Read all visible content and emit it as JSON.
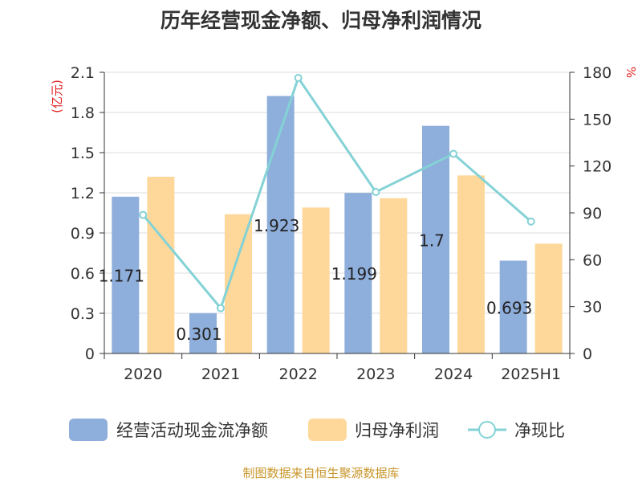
{
  "title": "历年经营现金净额、归母净利润情况",
  "source": "制图数据来自恒生聚源数据库",
  "chart_data": {
    "type": "bar",
    "categories": [
      "2020",
      "2021",
      "2022",
      "2023",
      "2024",
      "2025H1"
    ],
    "series": [
      {
        "name": "经营活动现金流净额",
        "type": "bar",
        "axis": "left",
        "color": "#8eaedb",
        "values": [
          1.171,
          0.301,
          1.923,
          1.199,
          1.7,
          0.693
        ],
        "labels": [
          "1.171",
          "0.301",
          "1.923",
          "1.199",
          "1.7",
          "0.693"
        ]
      },
      {
        "name": "归母净利润",
        "type": "bar",
        "axis": "left",
        "color": "#fdd89a",
        "values": [
          1.32,
          1.04,
          1.09,
          1.16,
          1.33,
          0.82
        ]
      },
      {
        "name": "净现比",
        "type": "line",
        "axis": "right",
        "color": "#84d2d6",
        "values": [
          88.7,
          29.0,
          176.4,
          103.4,
          127.8,
          84.5
        ]
      }
    ],
    "ylabel_left": "(亿元)",
    "ylabel_right": "%",
    "ylim_left": [
      0,
      2.1
    ],
    "ylim_right": [
      0,
      180
    ],
    "yticks_left": [
      "0",
      "0.3",
      "0.6",
      "0.9",
      "1.2",
      "1.5",
      "1.8",
      "2.1"
    ],
    "yticks_right": [
      "0",
      "30",
      "60",
      "90",
      "120",
      "150",
      "180"
    ],
    "grid": true,
    "legend_position": "bottom"
  }
}
